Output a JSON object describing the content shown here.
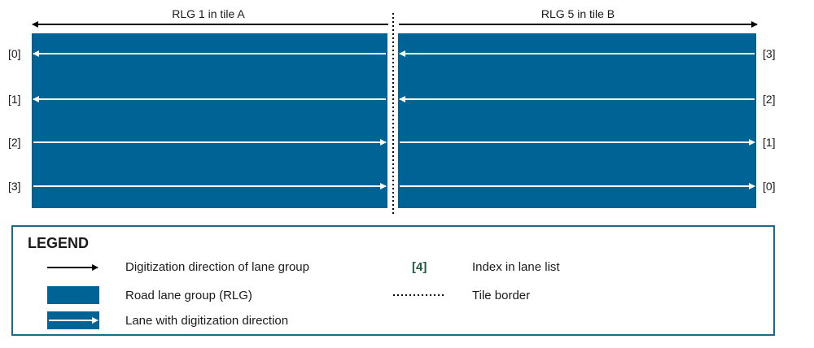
{
  "colors": {
    "rlg_fill": "#006395",
    "lane_line": "#ffffff",
    "text": "#1a1a1a",
    "legend_border": "#1a6a8e",
    "index_text": "#1e5a3c"
  },
  "tile_a": {
    "label": "RLG 1 in tile A",
    "indices": [
      "[0]",
      "[1]",
      "[2]",
      "[3]"
    ]
  },
  "tile_b": {
    "label": "RLG 5 in tile B",
    "indices": [
      "[3]",
      "[2]",
      "[1]",
      "[0]"
    ]
  },
  "legend": {
    "title": "LEGEND",
    "items": {
      "digitization_direction": "Digitization direction of lane group",
      "road_lane_group": "Road lane group (RLG)",
      "lane_with_direction": "Lane with digitization direction",
      "index_example": "[4]",
      "index_in_lane_list": "Index in lane list",
      "tile_border": "Tile border"
    }
  }
}
